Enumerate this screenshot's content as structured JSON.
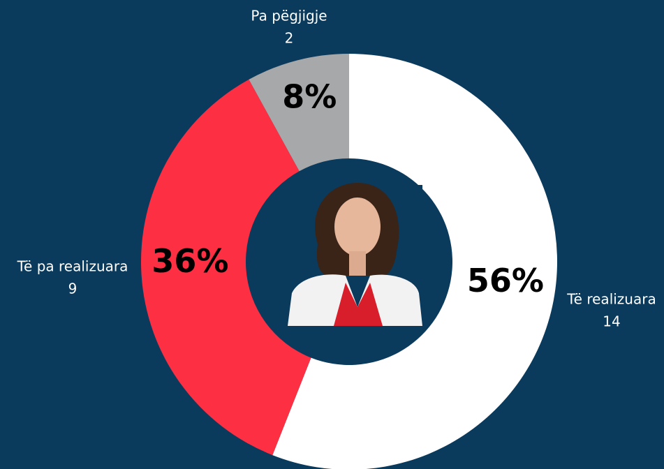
{
  "chart_data": {
    "type": "donut",
    "categories": [
      "Të realizuara",
      "Të pa realizuara",
      "Pa pëgjigje"
    ],
    "values": [
      14,
      9,
      2
    ],
    "percentages": [
      56,
      36,
      8
    ],
    "percentage_labels": [
      "56%",
      "36%",
      "8%"
    ],
    "colors": [
      "#ffffff",
      "#fd3043",
      "#a7a8aa"
    ]
  }
}
